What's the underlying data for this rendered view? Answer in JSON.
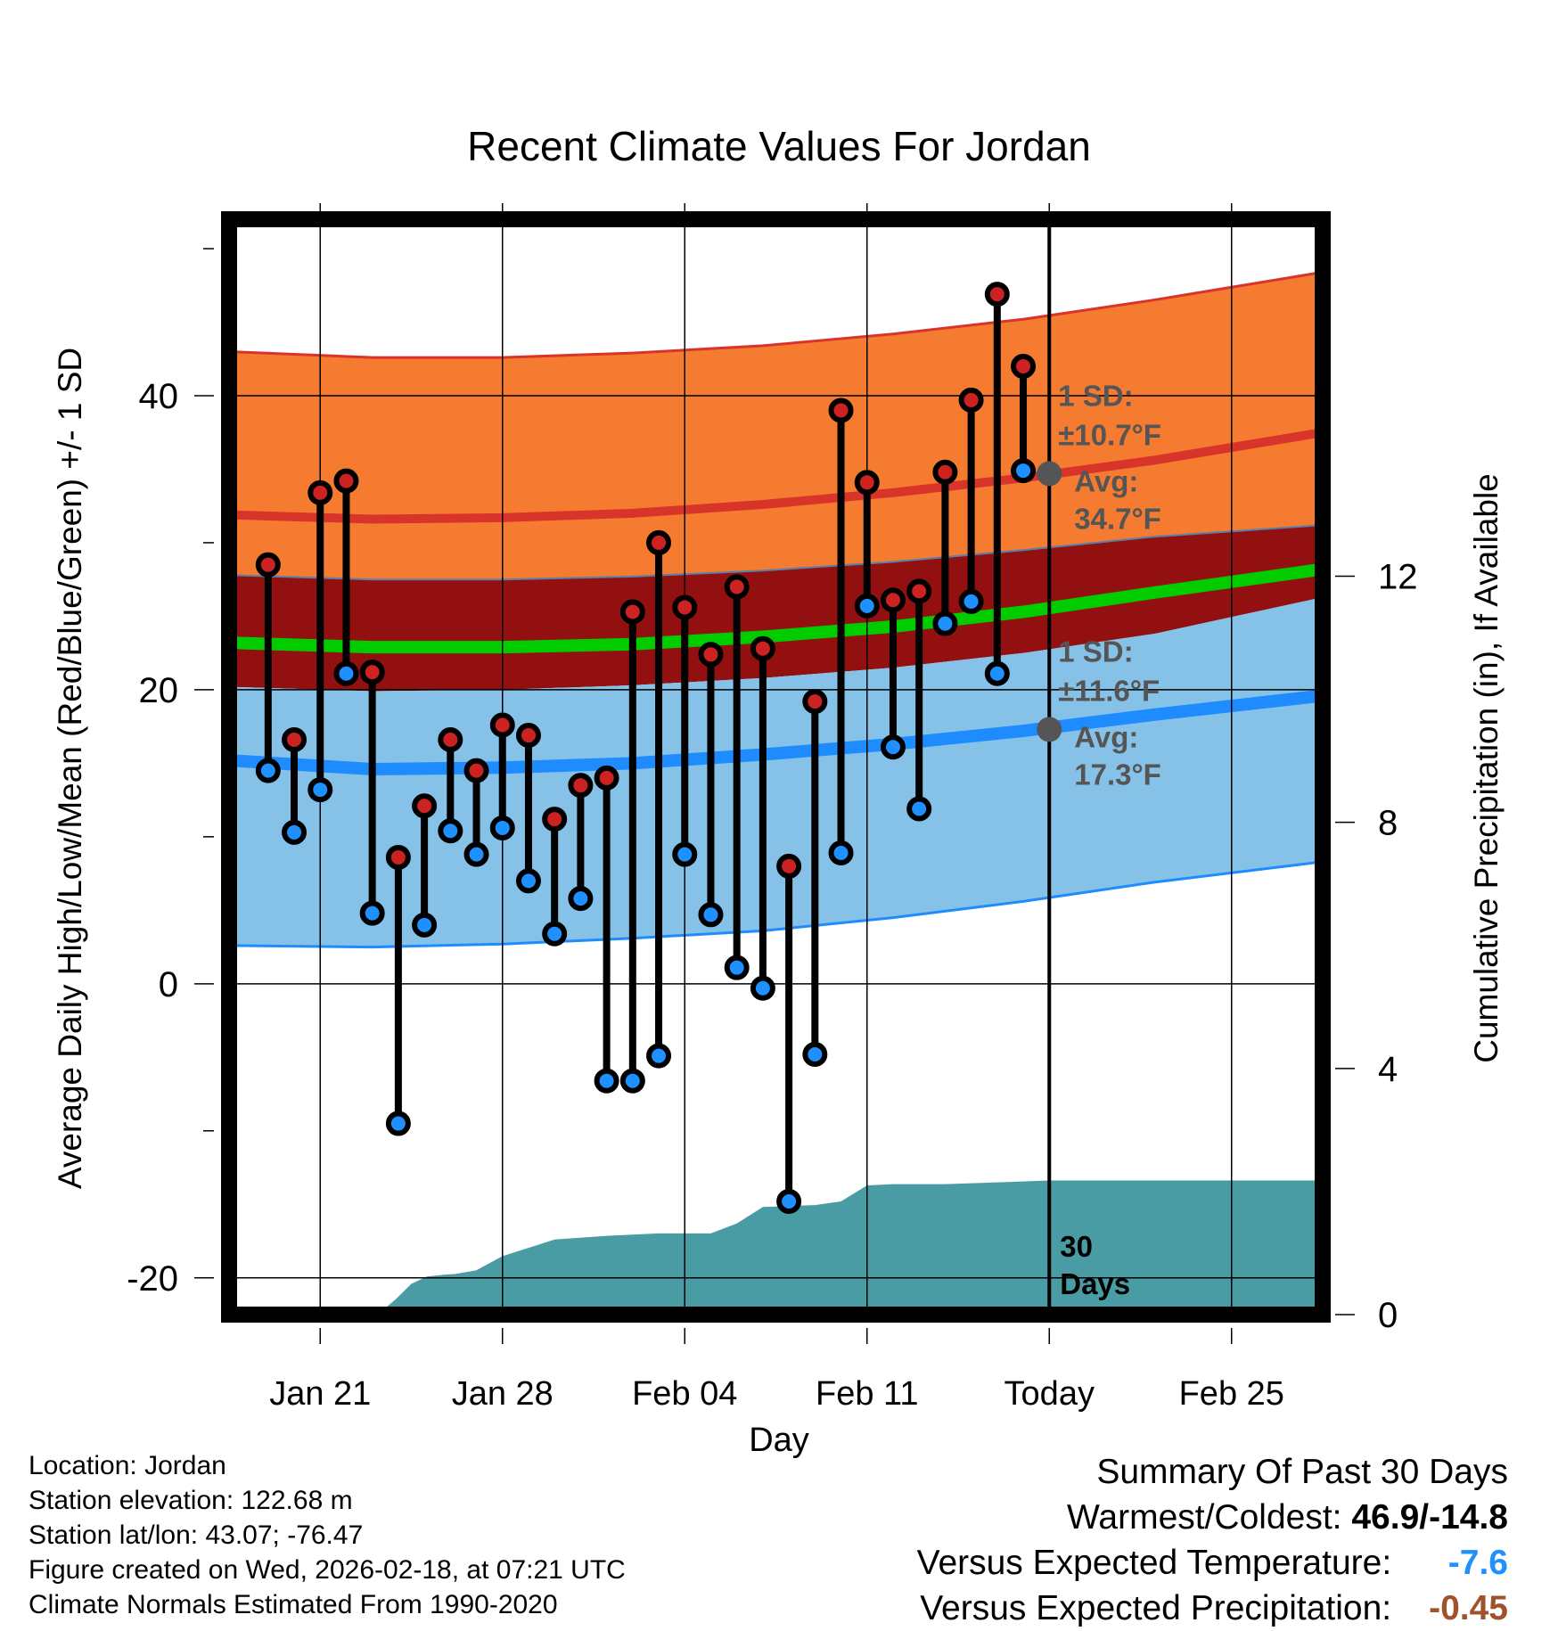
{
  "chart_data": {
    "type": "line",
    "title": "Recent Climate Values For Jordan",
    "xlabel": "Day",
    "ylabel": "Average Daily High/Low/Mean (Red/Blue/Green) +/- 1 SD",
    "y2label": "Cumulative Precipitation (in), If Available",
    "ylim": [
      -22.5,
      52
    ],
    "y2lim": [
      0,
      17.8
    ],
    "xlim": [
      -0.5,
      41.5
    ],
    "yticks": [
      "-20",
      "0",
      "20",
      "40"
    ],
    "y2ticks": [
      "0",
      "4",
      "8",
      "12"
    ],
    "xticks": [
      {
        "day": 3,
        "label": "Jan 21"
      },
      {
        "day": 10,
        "label": "Jan 28"
      },
      {
        "day": 17,
        "label": "Feb 04"
      },
      {
        "day": 24,
        "label": "Feb 11"
      },
      {
        "day": 31,
        "label": "Today"
      },
      {
        "day": 38,
        "label": "Feb 25"
      }
    ],
    "normals": {
      "days": [
        -0.5,
        5,
        10,
        15,
        20,
        25,
        30,
        35,
        41.5
      ],
      "high_upper": [
        43.0,
        42.6,
        42.6,
        42.9,
        43.4,
        44.2,
        45.2,
        46.5,
        48.4
      ],
      "high_mean": [
        31.9,
        31.6,
        31.7,
        32.0,
        32.6,
        33.4,
        34.4,
        35.6,
        37.5
      ],
      "high_lower": [
        21.0,
        20.7,
        20.8,
        21.1,
        21.6,
        22.4,
        23.4,
        24.7,
        26.5
      ],
      "mean_upper": [
        27.8,
        27.5,
        27.5,
        27.7,
        28.1,
        28.7,
        29.5,
        30.4,
        31.2
      ],
      "mean_line": [
        23.2,
        22.9,
        22.9,
        23.1,
        23.6,
        24.3,
        25.3,
        26.6,
        28.2
      ],
      "mean_lower": [
        20.2,
        19.9,
        20.0,
        20.3,
        20.8,
        21.5,
        22.5,
        23.8,
        25.4
      ],
      "low_upper": [
        20.2,
        19.9,
        20.0,
        20.3,
        20.8,
        21.5,
        22.5,
        23.8,
        26.3
      ],
      "low_mean": [
        15.2,
        14.6,
        14.7,
        15.0,
        15.6,
        16.3,
        17.2,
        18.3,
        19.6
      ],
      "low_lower": [
        2.6,
        2.5,
        2.7,
        3.1,
        3.6,
        4.5,
        5.6,
        6.9,
        8.3
      ]
    },
    "series": [
      {
        "name": "Daily High",
        "color": "#CC2222",
        "days": [
          1,
          2,
          3,
          4,
          5,
          6,
          7,
          8,
          9,
          10,
          11,
          12,
          13,
          14,
          15,
          16,
          17,
          18,
          19,
          20,
          21,
          22,
          23,
          24,
          25,
          26,
          27,
          28,
          29,
          30
        ],
        "values": [
          28.5,
          16.6,
          33.4,
          34.2,
          21.2,
          8.6,
          12.1,
          16.6,
          14.5,
          17.6,
          16.9,
          11.2,
          13.5,
          14.0,
          25.3,
          30.0,
          25.6,
          22.4,
          27.0,
          22.8,
          8.0,
          19.2,
          39.0,
          34.1,
          26.1,
          26.7,
          34.8,
          39.7,
          46.9,
          42.0
        ]
      },
      {
        "name": "Daily Low",
        "color": "#1E90FF",
        "days": [
          1,
          2,
          3,
          4,
          5,
          6,
          7,
          8,
          9,
          10,
          11,
          12,
          13,
          14,
          15,
          16,
          17,
          18,
          19,
          20,
          21,
          22,
          23,
          24,
          25,
          26,
          27,
          28,
          29,
          30
        ],
        "values": [
          14.5,
          10.3,
          13.2,
          21.1,
          4.8,
          -9.5,
          4.0,
          10.4,
          8.8,
          10.6,
          7.0,
          3.4,
          5.8,
          -6.6,
          -6.6,
          -4.9,
          8.8,
          4.7,
          1.1,
          -0.3,
          -14.8,
          -4.8,
          8.9,
          25.7,
          16.1,
          11.9,
          24.5,
          26.0,
          21.1,
          34.9
        ]
      }
    ],
    "precipitation": {
      "days": [
        -0.5,
        5.2,
        5.9,
        6.5,
        7.1,
        7.8,
        8.2,
        9.0,
        10.0,
        12.0,
        14.0,
        16.0,
        18.0,
        19.0,
        20.0,
        22.0,
        23.0,
        24.0,
        25.0,
        27.0,
        29.0,
        31.0,
        41.5
      ],
      "values": [
        0,
        0,
        0.25,
        0.5,
        0.62,
        0.65,
        0.66,
        0.72,
        0.95,
        1.22,
        1.28,
        1.32,
        1.32,
        1.48,
        1.75,
        1.78,
        1.84,
        2.1,
        2.12,
        2.12,
        2.15,
        2.18,
        2.18
      ]
    },
    "annotations": {
      "high_sd": "1 SD:",
      "high_sd_value": "±10.7°F",
      "high_avg_label": "Avg:",
      "high_avg_value": "34.7°F",
      "high_avg": 34.7,
      "low_sd": "1 SD:",
      "low_sd_value": "±11.6°F",
      "low_avg_label": "Avg:",
      "low_avg_value": "17.3°F",
      "low_avg": 17.3,
      "period_days": "30",
      "period_label": "Days",
      "today_day": 31
    },
    "colors": {
      "high_band": "#F47B30",
      "high_edge": "#D8342A",
      "mean_band": "#931010",
      "mean_line": "#00CC00",
      "low_band": "#86C2E8",
      "low_edge": "#1E8CFF",
      "precip": "#4A9CA4",
      "annotation": "#555555"
    }
  },
  "info": {
    "location": "Location: Jordan",
    "elevation": "Station elevation: 122.68 m",
    "latlon": "Station lat/lon: 43.07; -76.47",
    "created": "Figure created on Wed, 2026-02-18, at 07:21 UTC",
    "normals": "Climate Normals Estimated From 1990-2020"
  },
  "summary": {
    "title": "Summary Of Past 30 Days",
    "warmest_label": "Warmest/Coldest:",
    "warmest_value": "46.9/-14.8",
    "temp_label": "Versus Expected Temperature:",
    "temp_value": "-7.6",
    "precip_label": "Versus Expected Precipitation:",
    "precip_value": "-0.45"
  }
}
